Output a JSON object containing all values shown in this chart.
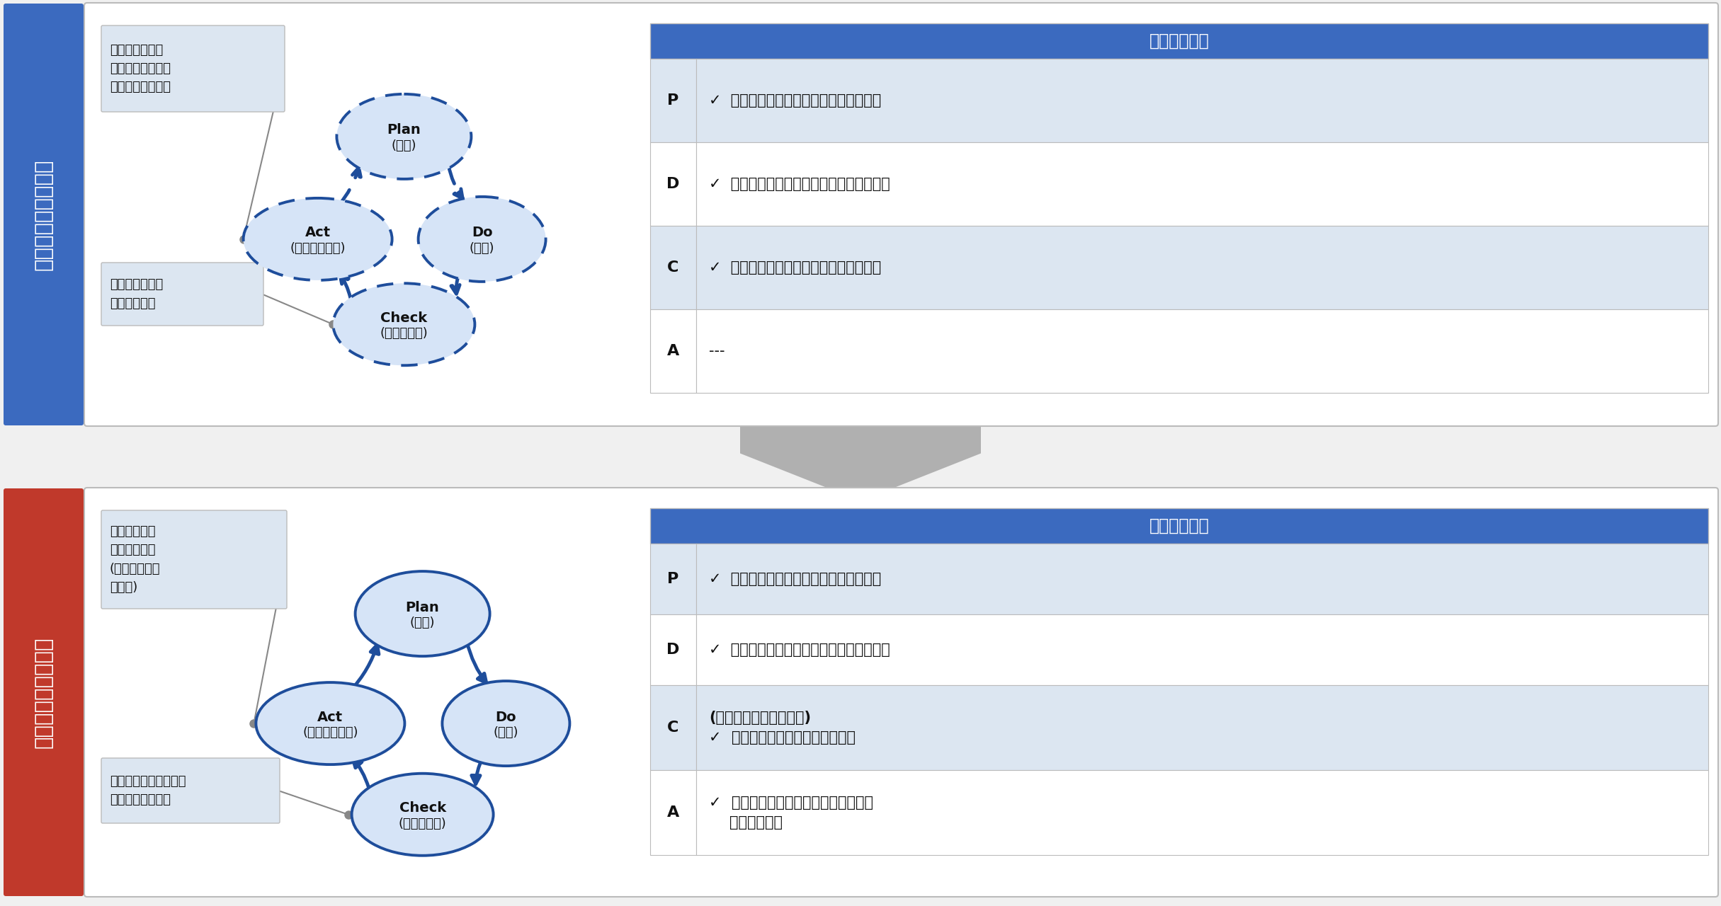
{
  "top_label": "プラクティス改善前",
  "bottom_label": "プラクティス改善後",
  "blue_sidebar": "#3b6abf",
  "red_sidebar": "#c0392b",
  "table_header_bg": "#3b6abf",
  "row_light_blue": "#dce6f1",
  "white": "#ffffff",
  "border_gray": "#bbbbbb",
  "pdca_fill": "#d6e4f7",
  "pdca_stroke": "#1e4d9b",
  "note_bg": "#dce6f1",
  "gray_line": "#888888",
  "gray_arrow": "#b0b0b0",
  "top_note1": "課題が把握され\nないため、対策も\n講じられなかった",
  "top_note2": "真の課題が把握\nされなかった",
  "bot_note1": "課題に対する\n改善策を実施\n(残存する課題\nも把握)",
  "bot_note2": "演習を通じてセキュリ\nティの課題を把握",
  "top_table_rows": [
    {
      "label": "P",
      "check": true,
      "text": "サイバーセキュリティ取組計画の策定",
      "bold": false
    },
    {
      "label": "D",
      "check": true,
      "text": "サイバーセキュリティ対策の導入・運用",
      "bold": false
    },
    {
      "label": "C",
      "check": true,
      "text": "チェックシートによる点検（形骸化）",
      "bold": false
    },
    {
      "label": "A",
      "check": false,
      "text": "---",
      "bold": false
    }
  ],
  "bot_table_rows": [
    {
      "label": "P",
      "check": true,
      "text": "サイバーセキュリティ取組計画の策定",
      "bold": false,
      "multiline": false
    },
    {
      "label": "D",
      "check": true,
      "text": "サイバーセキュリティ対策の導入・運用",
      "bold": false,
      "multiline": false
    },
    {
      "label": "C",
      "check": false,
      "text": "(改善前の内容に加えて)\n✓  机上演習やグループ討議の実施",
      "bold": true,
      "multiline": true
    },
    {
      "label": "A",
      "check": false,
      "text": "✓  社外メールの開封ルールの策定等具\n    体的な改善策",
      "bold": true,
      "multiline": true
    }
  ]
}
